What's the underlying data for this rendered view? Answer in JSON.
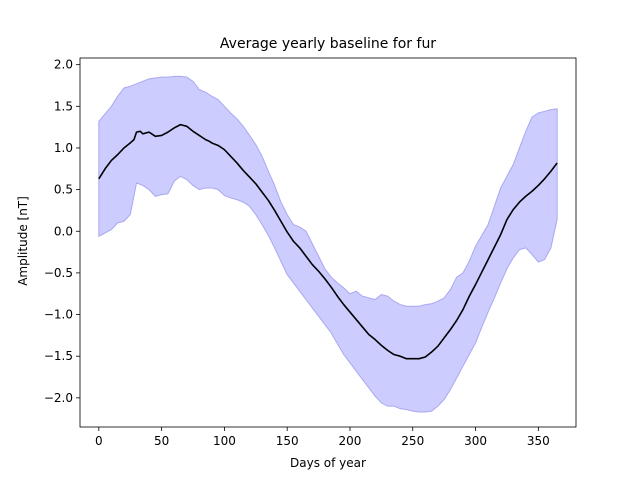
{
  "chart_data": {
    "type": "line",
    "title": "Average yearly baseline for fur",
    "xlabel": "Days of year",
    "ylabel": "Amplitude [nT]",
    "xlim": [
      -15,
      380
    ],
    "ylim": [
      -2.35,
      2.08
    ],
    "xticks": [
      0,
      50,
      100,
      150,
      200,
      250,
      300,
      350
    ],
    "xtick_labels": [
      "0",
      "50",
      "100",
      "150",
      "200",
      "250",
      "300",
      "350"
    ],
    "yticks": [
      -2.0,
      -1.5,
      -1.0,
      -0.5,
      0.0,
      0.5,
      1.0,
      1.5,
      2.0
    ],
    "ytick_labels": [
      "−2.0",
      "−1.5",
      "−1.0",
      "−0.5",
      "0.0",
      "0.5",
      "1.0",
      "1.5",
      "2.0"
    ],
    "grid": false,
    "colors": {
      "line": "#000000",
      "band_fill": "#ccccff",
      "band_edge": "#a8a8f0"
    },
    "band_x": [
      0,
      10,
      15,
      20,
      25,
      30,
      35,
      40,
      45,
      50,
      55,
      60,
      65,
      70,
      75,
      80,
      85,
      90,
      95,
      100,
      105,
      110,
      115,
      120,
      125,
      130,
      135,
      140,
      145,
      150,
      155,
      160,
      165,
      170,
      175,
      180,
      185,
      190,
      195,
      200,
      205,
      210,
      215,
      220,
      225,
      230,
      235,
      240,
      245,
      250,
      255,
      260,
      265,
      270,
      275,
      280,
      285,
      290,
      295,
      300,
      305,
      310,
      315,
      320,
      325,
      330,
      335,
      340,
      345,
      350,
      355,
      360,
      365
    ],
    "band_upper": [
      1.32,
      1.5,
      1.62,
      1.72,
      1.74,
      1.77,
      1.8,
      1.83,
      1.84,
      1.85,
      1.85,
      1.86,
      1.86,
      1.85,
      1.8,
      1.7,
      1.67,
      1.62,
      1.58,
      1.5,
      1.42,
      1.35,
      1.26,
      1.15,
      1.04,
      0.9,
      0.72,
      0.55,
      0.35,
      0.2,
      0.08,
      0.05,
      0.0,
      -0.15,
      -0.3,
      -0.45,
      -0.55,
      -0.62,
      -0.68,
      -0.75,
      -0.72,
      -0.78,
      -0.8,
      -0.82,
      -0.76,
      -0.78,
      -0.84,
      -0.88,
      -0.9,
      -0.9,
      -0.9,
      -0.88,
      -0.87,
      -0.84,
      -0.8,
      -0.7,
      -0.55,
      -0.5,
      -0.36,
      -0.18,
      -0.05,
      0.08,
      0.3,
      0.52,
      0.66,
      0.8,
      1.0,
      1.2,
      1.37,
      1.42,
      1.44,
      1.46,
      1.47
    ],
    "band_lower": [
      -0.06,
      0.02,
      0.1,
      0.12,
      0.2,
      0.58,
      0.55,
      0.5,
      0.42,
      0.44,
      0.45,
      0.6,
      0.66,
      0.62,
      0.55,
      0.5,
      0.52,
      0.52,
      0.5,
      0.43,
      0.4,
      0.38,
      0.35,
      0.3,
      0.2,
      0.08,
      -0.05,
      -0.2,
      -0.36,
      -0.52,
      -0.62,
      -0.72,
      -0.82,
      -0.92,
      -1.02,
      -1.12,
      -1.22,
      -1.35,
      -1.48,
      -1.58,
      -1.68,
      -1.78,
      -1.88,
      -1.98,
      -2.06,
      -2.1,
      -2.1,
      -2.13,
      -2.14,
      -2.16,
      -2.17,
      -2.17,
      -2.16,
      -2.1,
      -2.02,
      -1.9,
      -1.76,
      -1.62,
      -1.48,
      -1.34,
      -1.15,
      -0.97,
      -0.8,
      -0.62,
      -0.45,
      -0.32,
      -0.22,
      -0.2,
      -0.28,
      -0.37,
      -0.34,
      -0.2,
      0.15
    ],
    "series": [
      {
        "x": [
          0,
          5,
          10,
          15,
          20,
          25,
          28,
          30,
          33,
          35,
          40,
          45,
          50,
          55,
          60,
          65,
          70,
          75,
          80,
          85,
          88,
          90,
          95,
          100,
          105,
          110,
          115,
          120,
          125,
          130,
          135,
          140,
          145,
          150,
          155,
          160,
          165,
          170,
          175,
          180,
          185,
          190,
          195,
          200,
          205,
          210,
          215,
          220,
          225,
          230,
          235,
          240,
          245,
          250,
          255,
          260,
          265,
          270,
          275,
          280,
          285,
          290,
          295,
          300,
          305,
          310,
          315,
          320,
          325,
          330,
          335,
          340,
          345,
          350,
          355,
          360,
          365
        ],
        "y": [
          0.63,
          0.75,
          0.85,
          0.92,
          1.0,
          1.06,
          1.1,
          1.19,
          1.2,
          1.17,
          1.19,
          1.14,
          1.15,
          1.19,
          1.24,
          1.28,
          1.26,
          1.2,
          1.15,
          1.1,
          1.08,
          1.06,
          1.03,
          0.98,
          0.9,
          0.82,
          0.73,
          0.65,
          0.57,
          0.47,
          0.37,
          0.25,
          0.12,
          -0.01,
          -0.12,
          -0.2,
          -0.3,
          -0.4,
          -0.48,
          -0.57,
          -0.67,
          -0.78,
          -0.88,
          -0.97,
          -1.06,
          -1.15,
          -1.24,
          -1.3,
          -1.37,
          -1.43,
          -1.48,
          -1.5,
          -1.53,
          -1.53,
          -1.53,
          -1.51,
          -1.45,
          -1.38,
          -1.28,
          -1.18,
          -1.07,
          -0.94,
          -0.78,
          -0.64,
          -0.49,
          -0.34,
          -0.19,
          -0.04,
          0.14,
          0.26,
          0.35,
          0.42,
          0.48,
          0.55,
          0.63,
          0.72,
          0.82
        ]
      }
    ]
  }
}
